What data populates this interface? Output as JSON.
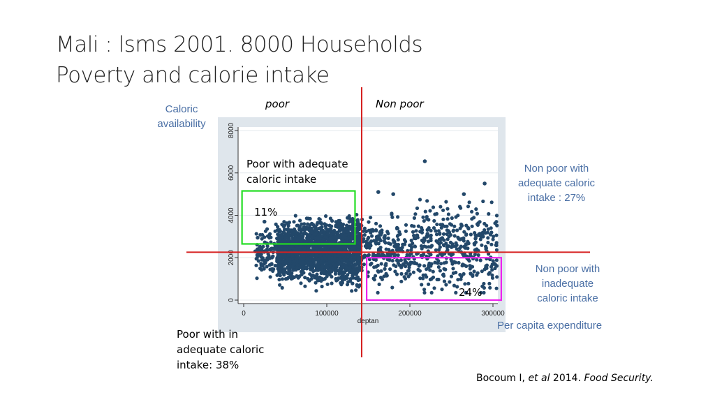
{
  "title": {
    "line1": "Mali : lsms 2001. 8000 Households",
    "line2": "Poverty and calorie intake"
  },
  "labels": {
    "poor": "poor",
    "non_poor": "Non poor",
    "caloric_availability_line1": "Caloric",
    "caloric_availability_line2": "availability",
    "poor_adequate_line1": "Poor with adequate",
    "poor_adequate_line2": "caloric intake",
    "pct_11": "11%",
    "pct_24": "24%",
    "nonpoor_adequate_line1": "Non poor with",
    "nonpoor_adequate_line2": "adequate caloric",
    "nonpoor_adequate_line3": "intake : 27%",
    "nonpoor_inadequate_line1": "Non poor with",
    "nonpoor_inadequate_line2": "inadequate",
    "nonpoor_inadequate_line3": "caloric intake",
    "per_capita": "Per capita expenditure",
    "poor_inadequate_line1": "Poor with in",
    "poor_inadequate_line2": "adequate caloric",
    "poor_inadequate_line3": "intake: 38%"
  },
  "citation": {
    "author": "Bocoum I, ",
    "etal": "et al",
    "year": " 2014. ",
    "journal": "Food Security."
  },
  "colors": {
    "points": "#23486a",
    "reference_lines": "#d62020",
    "green_box": "#22dd22",
    "magenta_box": "#ee22ee",
    "plot_background": "#dfe6ec",
    "annotation_text": "#4a6fa5"
  },
  "chart_data": {
    "type": "scatter",
    "xlabel": "deptan",
    "ylabel": "",
    "xlim": [
      -8000,
      310000
    ],
    "ylim": [
      0,
      8500
    ],
    "x_ticks": [
      0,
      100000,
      200000,
      300000
    ],
    "x_tick_labels": [
      "0",
      "100000",
      "200000",
      "300000"
    ],
    "y_ticks": [
      0,
      2000,
      4000,
      6000,
      8000
    ],
    "y_tick_labels": [
      "0",
      "2000",
      "4000",
      "6000",
      "8000"
    ],
    "grid": true,
    "reference_lines": {
      "poverty_line_x": 142000,
      "calorie_threshold_y": 2260
    },
    "boxes": [
      {
        "name": "poor-adequate",
        "x0": -2000,
        "x1": 134000,
        "y0": 2650,
        "y1": 5150
      },
      {
        "name": "nonpoor-inadequate",
        "x0": 148000,
        "x1": 310000,
        "y0": 0,
        "y1": 2000
      }
    ],
    "outliers": [
      {
        "x": 218000,
        "y": 6550
      },
      {
        "x": 290000,
        "y": 5500
      },
      {
        "x": 162000,
        "y": 5100
      },
      {
        "x": 180000,
        "y": 5000
      },
      {
        "x": 265000,
        "y": 5000
      },
      {
        "x": 25000,
        "y": 3700
      },
      {
        "x": 14000,
        "y": 2300
      }
    ],
    "point_cloud": {
      "n_points": 2600,
      "x_range": [
        15000,
        305000
      ],
      "y_center": 2300,
      "y_spread": 950,
      "description_density": "densest between 40000 and 140000"
    }
  }
}
